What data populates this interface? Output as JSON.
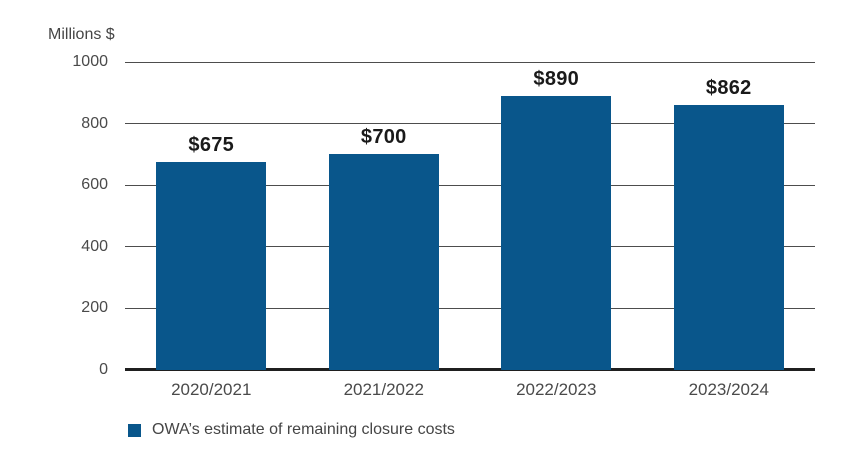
{
  "chart_data": {
    "type": "bar",
    "title": "",
    "ylabel": "Millions $",
    "xlabel": "",
    "categories": [
      "2020/2021",
      "2021/2022",
      "2022/2023",
      "2023/2024"
    ],
    "values": [
      675,
      700,
      890,
      862
    ],
    "value_labels": [
      "$675",
      "$700",
      "$890",
      "$862"
    ],
    "ylim": [
      0,
      1000
    ],
    "yticks": [
      0,
      200,
      400,
      600,
      800,
      1000
    ],
    "grid": "horizontal",
    "legend": {
      "label": "OWA’s estimate of remaining closure costs",
      "position": "bottom-left"
    },
    "colors": {
      "bar": "#09568b",
      "grid": "#4d4d4d",
      "axis": "#1f1f1f",
      "tick_text": "#4a4a4a",
      "value_text": "#1a1a1a",
      "legend_text": "#454545",
      "background": "#ffffff"
    }
  }
}
